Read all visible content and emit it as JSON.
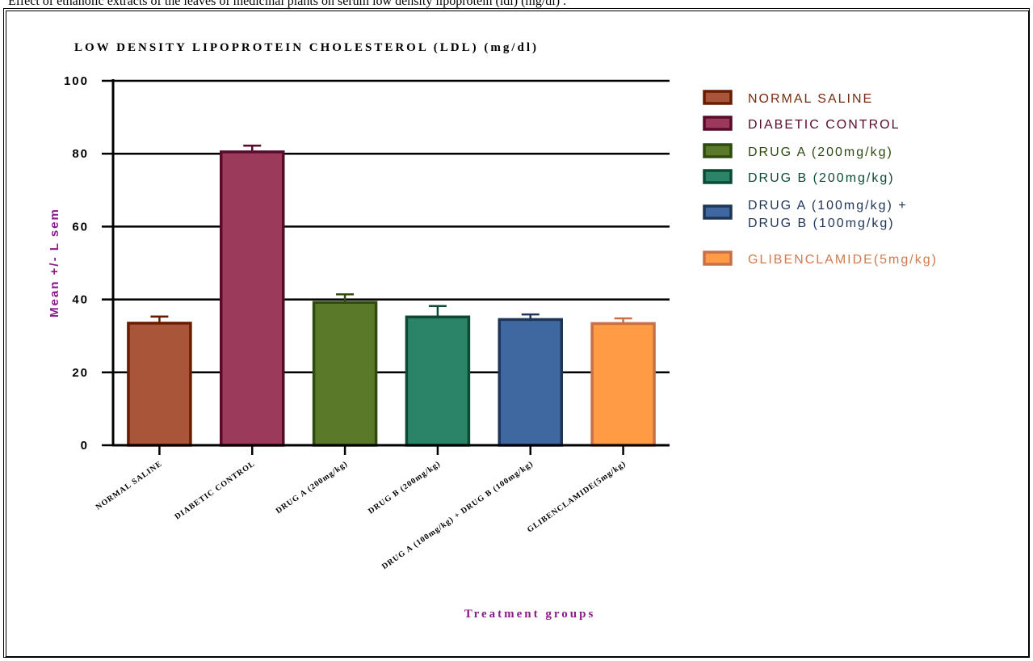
{
  "caption": "Effect of ethanolic extracts of the leaves of medicinal plants on serum low density lipoprotein (ldl) (mg/dl) .",
  "chart_data": {
    "type": "bar",
    "title": "LOW DENSITY LIPOPROTEIN CHOLESTEROL (LDL) (mg/dl)",
    "xlabel": "Treatment groups",
    "ylabel": "Mean +/- L sem",
    "ylim": [
      0,
      100
    ],
    "yticks": [
      0,
      20,
      40,
      60,
      80,
      100
    ],
    "grid": true,
    "legend_position": "right",
    "categories": [
      "NORMAL SALINE",
      "DIABETIC CONTROL",
      "DRUG A (200mg/kg)",
      "DRUG B (200mg/kg)",
      "DRUG A (100mg/kg) + DRUG B (100mg/kg)",
      "GLIBENCLAMIDE(5mg/kg)"
    ],
    "values": [
      33.5,
      80.5,
      39.2,
      35.2,
      34.5,
      33.4
    ],
    "errors": [
      1.8,
      1.7,
      2.2,
      3.0,
      1.4,
      1.4
    ],
    "legend": [
      [
        "NORMAL SALINE"
      ],
      [
        "DIABETIC CONTROL"
      ],
      [
        " DRUG A (200mg/kg)"
      ],
      [
        "DRUG B (200mg/kg)"
      ],
      [
        "DRUG A (100mg/kg) +",
        "DRUG B (100mg/kg)"
      ],
      [
        "GLIBENCLAMIDE(5mg/kg)"
      ]
    ],
    "colors": {
      "fills": [
        "#a9553a",
        "#9c3a5c",
        "#5a7a2a",
        "#2b8468",
        "#3f67a0",
        "#ff9a45"
      ],
      "borders": [
        "#6a1c00",
        "#5a0a2a",
        "#2f4a10",
        "#0c4a34",
        "#1f3558",
        "#c8704a"
      ],
      "legend_text": [
        "#7a2a10",
        "#5a0a2a",
        "#2f4a10",
        "#0c4a34",
        "#1f3558",
        "#d07a50"
      ]
    }
  }
}
